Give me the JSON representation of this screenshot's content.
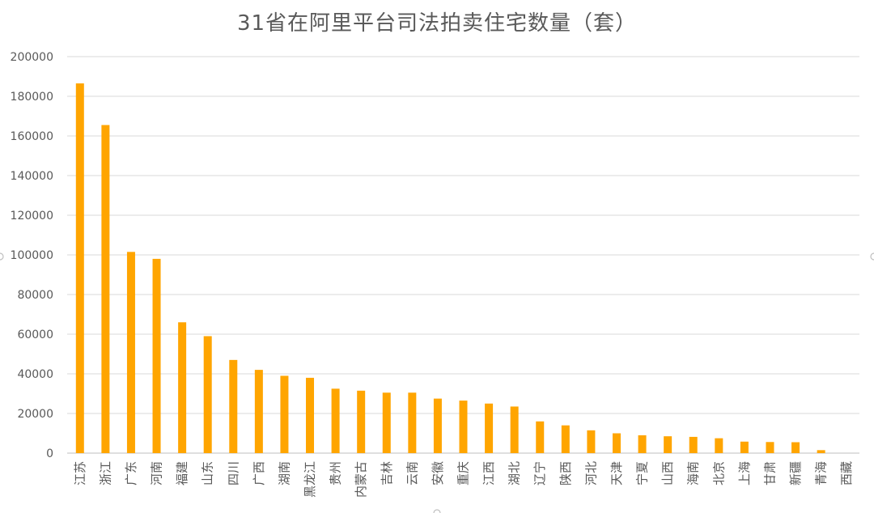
{
  "chart_data": {
    "type": "bar",
    "title": "31省在阿里平台司法拍卖住宅数量（套）",
    "categories": [
      "江苏",
      "浙江",
      "广东",
      "河南",
      "福建",
      "山东",
      "四川",
      "广西",
      "湖南",
      "黑龙江",
      "贵州",
      "内蒙古",
      "吉林",
      "云南",
      "安徽",
      "重庆",
      "江西",
      "湖北",
      "辽宁",
      "陕西",
      "河北",
      "天津",
      "宁夏",
      "山西",
      "海南",
      "北京",
      "上海",
      "甘肃",
      "新疆",
      "青海",
      "西藏"
    ],
    "values": [
      186500,
      165500,
      101500,
      98000,
      66000,
      59000,
      47000,
      42000,
      39000,
      38000,
      32500,
      31500,
      30500,
      30500,
      27500,
      26500,
      25000,
      23500,
      16000,
      14000,
      11500,
      10000,
      9000,
      8500,
      8200,
      7500,
      5800,
      5600,
      5500,
      1500,
      0
    ],
    "ylim": [
      0,
      200000
    ],
    "yticks": [
      "0",
      "20000",
      "40000",
      "60000",
      "80000",
      "100000",
      "120000",
      "140000",
      "160000",
      "180000",
      "200000"
    ],
    "xlabel": "",
    "ylabel": "",
    "grid": true,
    "legend": "none",
    "bar_color": "#FFA500",
    "grid_color": "#D9D9D9",
    "label_color": "#595959"
  }
}
